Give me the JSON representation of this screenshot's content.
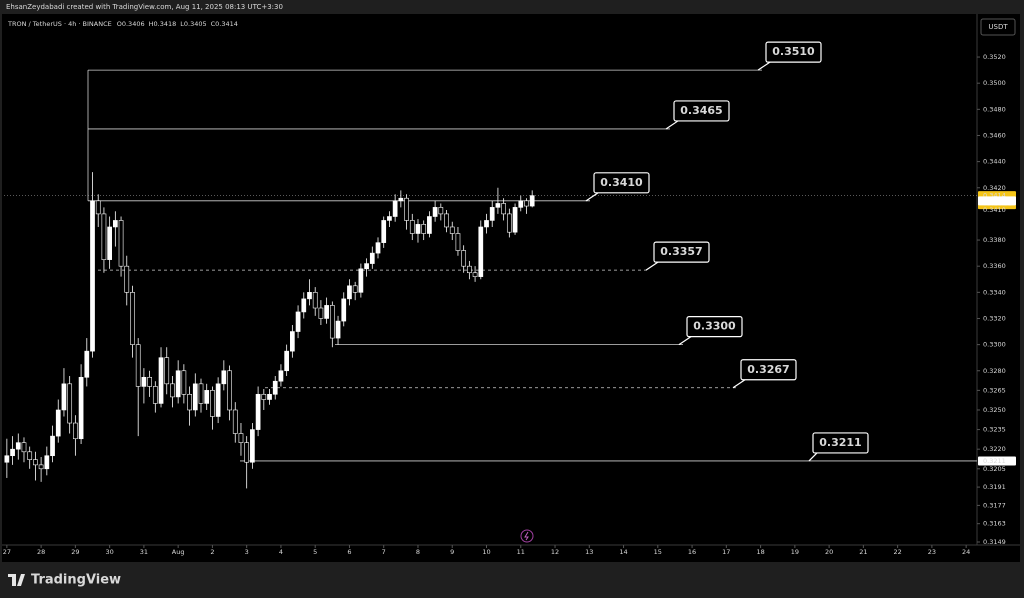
{
  "header": {
    "text": "EhsanZeydabadi created with TradingView.com, Aug 11, 2025 08:13 UTC+3:30"
  },
  "footer": {
    "logo": "TradingView"
  },
  "chart_data": {
    "type": "candlestick",
    "title": "TRON / TetherUS · 4h · BINANCE",
    "ohlc_labels": [
      "O",
      "H",
      "L",
      "C"
    ],
    "currency": "USDT",
    "countdown": "03:16:32",
    "up_color": "#ffffff",
    "down_color": "#ffffff",
    "ylim": [
      0.31467,
      0.35514
    ],
    "yticks": [
      {
        "value": 0.352,
        "label": "0.3520"
      },
      {
        "value": 0.35,
        "label": "0.3500"
      },
      {
        "value": 0.348,
        "label": "0.3480"
      },
      {
        "value": 0.346,
        "label": "0.3460"
      },
      {
        "value": 0.344,
        "label": "0.3440"
      },
      {
        "value": 0.342,
        "label": "0.3420"
      },
      {
        "value": 0.338,
        "label": "0.3380"
      },
      {
        "value": 0.336,
        "label": "0.3360"
      },
      {
        "value": 0.334,
        "label": "0.3340"
      },
      {
        "value": 0.332,
        "label": "0.3320"
      },
      {
        "value": 0.33,
        "label": "0.3300"
      },
      {
        "value": 0.328,
        "label": "0.3280"
      },
      {
        "value": 0.3265,
        "label": "0.3265"
      },
      {
        "value": 0.325,
        "label": "0.3250"
      },
      {
        "value": 0.3235,
        "label": "0.3235"
      },
      {
        "value": 0.322,
        "label": "0.3220"
      },
      {
        "value": 0.3205,
        "label": "0.3205"
      },
      {
        "value": 0.3191,
        "label": "0.3191"
      },
      {
        "value": 0.3177,
        "label": "0.3177"
      },
      {
        "value": 0.3163,
        "label": "0.3163"
      },
      {
        "value": 0.3149,
        "label": "0.3149"
      }
    ],
    "price_tags": [
      {
        "value": 0.3414,
        "label": "0.3414",
        "color": "#f5c518"
      },
      {
        "value": 0.341,
        "label": "0.3410",
        "color": "#ffffff"
      },
      {
        "value": 0.3211,
        "label": "0.3211",
        "color": "#ffffff"
      }
    ],
    "xlim": [
      -0.5,
      169.9
    ],
    "xticks": [
      {
        "value": 0,
        "label": "27"
      },
      {
        "value": 6,
        "label": "28"
      },
      {
        "value": 12,
        "label": "29"
      },
      {
        "value": 18,
        "label": "30"
      },
      {
        "value": 24,
        "label": "31"
      },
      {
        "value": 30,
        "label": "Aug"
      },
      {
        "value": 36,
        "label": "2"
      },
      {
        "value": 42,
        "label": "3"
      },
      {
        "value": 48,
        "label": "4"
      },
      {
        "value": 54,
        "label": "5"
      },
      {
        "value": 60,
        "label": "6"
      },
      {
        "value": 66,
        "label": "7"
      },
      {
        "value": 72,
        "label": "8"
      },
      {
        "value": 78,
        "label": "9"
      },
      {
        "value": 84,
        "label": "10"
      },
      {
        "value": 90,
        "label": "11"
      },
      {
        "value": 96,
        "label": "12"
      },
      {
        "value": 102,
        "label": "13"
      },
      {
        "value": 108,
        "label": "14"
      },
      {
        "value": 114,
        "label": "15"
      },
      {
        "value": 120,
        "label": "16"
      },
      {
        "value": 126,
        "label": "17"
      },
      {
        "value": 132,
        "label": "18"
      },
      {
        "value": 138,
        "label": "19"
      },
      {
        "value": 144,
        "label": "20"
      },
      {
        "value": 150,
        "label": "21"
      },
      {
        "value": 156,
        "label": "22"
      },
      {
        "value": 162,
        "label": "23"
      },
      {
        "value": 168,
        "label": "24"
      }
    ],
    "levels": [
      {
        "value": 0.351,
        "label": "0.3510",
        "style": "solid"
      },
      {
        "value": 0.3465,
        "label": "0.3465",
        "style": "solid"
      },
      {
        "value": 0.341,
        "label": "0.3410",
        "style": "solid"
      },
      {
        "value": 0.3357,
        "label": "0.3357",
        "style": "dashed"
      },
      {
        "value": 0.33,
        "label": "0.3300",
        "style": "solid"
      },
      {
        "value": 0.3267,
        "label": "0.3267",
        "style": "dashed"
      },
      {
        "value": 0.3211,
        "label": "0.3211",
        "style": "solid"
      }
    ],
    "ohlc": [
      [
        0.321,
        0.3228,
        0.3198,
        0.3215
      ],
      [
        0.3215,
        0.323,
        0.3208,
        0.322
      ],
      [
        0.322,
        0.3232,
        0.3212,
        0.3225
      ],
      [
        0.3225,
        0.3229,
        0.321,
        0.3218
      ],
      [
        0.3218,
        0.3222,
        0.3205,
        0.3212
      ],
      [
        0.3212,
        0.3218,
        0.3196,
        0.3208
      ],
      [
        0.3208,
        0.3214,
        0.3195,
        0.3205
      ],
      [
        0.3205,
        0.3222,
        0.32,
        0.3215
      ],
      [
        0.3215,
        0.3238,
        0.321,
        0.323
      ],
      [
        0.323,
        0.3258,
        0.3225,
        0.325
      ],
      [
        0.325,
        0.3282,
        0.3245,
        0.327
      ],
      [
        0.327,
        0.3276,
        0.3232,
        0.324
      ],
      [
        0.324,
        0.3246,
        0.3215,
        0.3228
      ],
      [
        0.3228,
        0.3285,
        0.3224,
        0.3275
      ],
      [
        0.3275,
        0.3305,
        0.3268,
        0.3295
      ],
      [
        0.3295,
        0.3432,
        0.329,
        0.341
      ],
      [
        0.341,
        0.3415,
        0.339,
        0.34
      ],
      [
        0.34,
        0.3405,
        0.3355,
        0.3365
      ],
      [
        0.3365,
        0.3398,
        0.3358,
        0.339
      ],
      [
        0.339,
        0.3402,
        0.3375,
        0.3395
      ],
      [
        0.3395,
        0.3398,
        0.3352,
        0.336
      ],
      [
        0.336,
        0.3368,
        0.333,
        0.334
      ],
      [
        0.334,
        0.3345,
        0.329,
        0.33
      ],
      [
        0.33,
        0.3305,
        0.323,
        0.3268
      ],
      [
        0.3268,
        0.3282,
        0.3255,
        0.3275
      ],
      [
        0.3275,
        0.328,
        0.326,
        0.3268
      ],
      [
        0.3268,
        0.3272,
        0.3248,
        0.3255
      ],
      [
        0.3255,
        0.3298,
        0.3252,
        0.329
      ],
      [
        0.329,
        0.3298,
        0.3262,
        0.327
      ],
      [
        0.327,
        0.3276,
        0.3252,
        0.326
      ],
      [
        0.326,
        0.3288,
        0.3255,
        0.328
      ],
      [
        0.328,
        0.3285,
        0.3255,
        0.3262
      ],
      [
        0.3262,
        0.3268,
        0.3238,
        0.325
      ],
      [
        0.325,
        0.3278,
        0.3245,
        0.327
      ],
      [
        0.327,
        0.3274,
        0.3248,
        0.3255
      ],
      [
        0.3255,
        0.327,
        0.325,
        0.3265
      ],
      [
        0.3265,
        0.3268,
        0.3235,
        0.3245
      ],
      [
        0.3245,
        0.3275,
        0.324,
        0.327
      ],
      [
        0.327,
        0.3288,
        0.3265,
        0.328
      ],
      [
        0.328,
        0.3284,
        0.3242,
        0.325
      ],
      [
        0.325,
        0.3256,
        0.3225,
        0.3232
      ],
      [
        0.3232,
        0.324,
        0.3215,
        0.3225
      ],
      [
        0.3225,
        0.323,
        0.319,
        0.321
      ],
      [
        0.321,
        0.324,
        0.3205,
        0.3235
      ],
      [
        0.3235,
        0.3268,
        0.323,
        0.3262
      ],
      [
        0.3262,
        0.3266,
        0.325,
        0.3258
      ],
      [
        0.3258,
        0.3266,
        0.3254,
        0.3262
      ],
      [
        0.3262,
        0.3276,
        0.3258,
        0.3272
      ],
      [
        0.3272,
        0.3285,
        0.3268,
        0.328
      ],
      [
        0.328,
        0.33,
        0.3276,
        0.3295
      ],
      [
        0.3295,
        0.3315,
        0.329,
        0.331
      ],
      [
        0.331,
        0.333,
        0.3305,
        0.3325
      ],
      [
        0.3325,
        0.334,
        0.332,
        0.3335
      ],
      [
        0.3335,
        0.335,
        0.333,
        0.334
      ],
      [
        0.334,
        0.3344,
        0.3322,
        0.3328
      ],
      [
        0.3328,
        0.3334,
        0.3315,
        0.332
      ],
      [
        0.332,
        0.3336,
        0.3316,
        0.333
      ],
      [
        0.333,
        0.3333,
        0.3298,
        0.3305
      ],
      [
        0.3305,
        0.3322,
        0.33,
        0.3318
      ],
      [
        0.3318,
        0.334,
        0.3314,
        0.3335
      ],
      [
        0.3335,
        0.335,
        0.333,
        0.3345
      ],
      [
        0.3345,
        0.3348,
        0.3334,
        0.334
      ],
      [
        0.334,
        0.3362,
        0.3336,
        0.3358
      ],
      [
        0.3358,
        0.3366,
        0.3352,
        0.3362
      ],
      [
        0.3362,
        0.3375,
        0.3358,
        0.337
      ],
      [
        0.337,
        0.3382,
        0.3366,
        0.3378
      ],
      [
        0.3378,
        0.3398,
        0.3374,
        0.3395
      ],
      [
        0.3395,
        0.3402,
        0.339,
        0.3398
      ],
      [
        0.3398,
        0.3415,
        0.3394,
        0.341
      ],
      [
        0.341,
        0.3418,
        0.3405,
        0.3412
      ],
      [
        0.3412,
        0.3415,
        0.3388,
        0.3395
      ],
      [
        0.3395,
        0.34,
        0.338,
        0.3385
      ],
      [
        0.3385,
        0.3396,
        0.3378,
        0.3392
      ],
      [
        0.3392,
        0.3395,
        0.338,
        0.3385
      ],
      [
        0.3385,
        0.3402,
        0.3382,
        0.3398
      ],
      [
        0.3398,
        0.341,
        0.3394,
        0.3405
      ],
      [
        0.3405,
        0.3408,
        0.3395,
        0.34
      ],
      [
        0.34,
        0.3403,
        0.3386,
        0.339
      ],
      [
        0.339,
        0.3394,
        0.338,
        0.3385
      ],
      [
        0.3385,
        0.339,
        0.3368,
        0.3372
      ],
      [
        0.3372,
        0.3376,
        0.3355,
        0.336
      ],
      [
        0.336,
        0.3364,
        0.335,
        0.3355
      ],
      [
        0.3355,
        0.336,
        0.3348,
        0.3352
      ],
      [
        0.3352,
        0.3395,
        0.335,
        0.339
      ],
      [
        0.339,
        0.34,
        0.3385,
        0.3395
      ],
      [
        0.3395,
        0.341,
        0.339,
        0.3405
      ],
      [
        0.3405,
        0.342,
        0.34,
        0.3408
      ],
      [
        0.3408,
        0.3412,
        0.3395,
        0.34
      ],
      [
        0.34,
        0.3404,
        0.3382,
        0.3386
      ],
      [
        0.3386,
        0.3408,
        0.3384,
        0.3405
      ],
      [
        0.3405,
        0.3414,
        0.3402,
        0.341
      ],
      [
        0.341,
        0.3412,
        0.34,
        0.3406
      ],
      [
        0.3406,
        0.3418,
        0.3405,
        0.3414
      ]
    ]
  }
}
